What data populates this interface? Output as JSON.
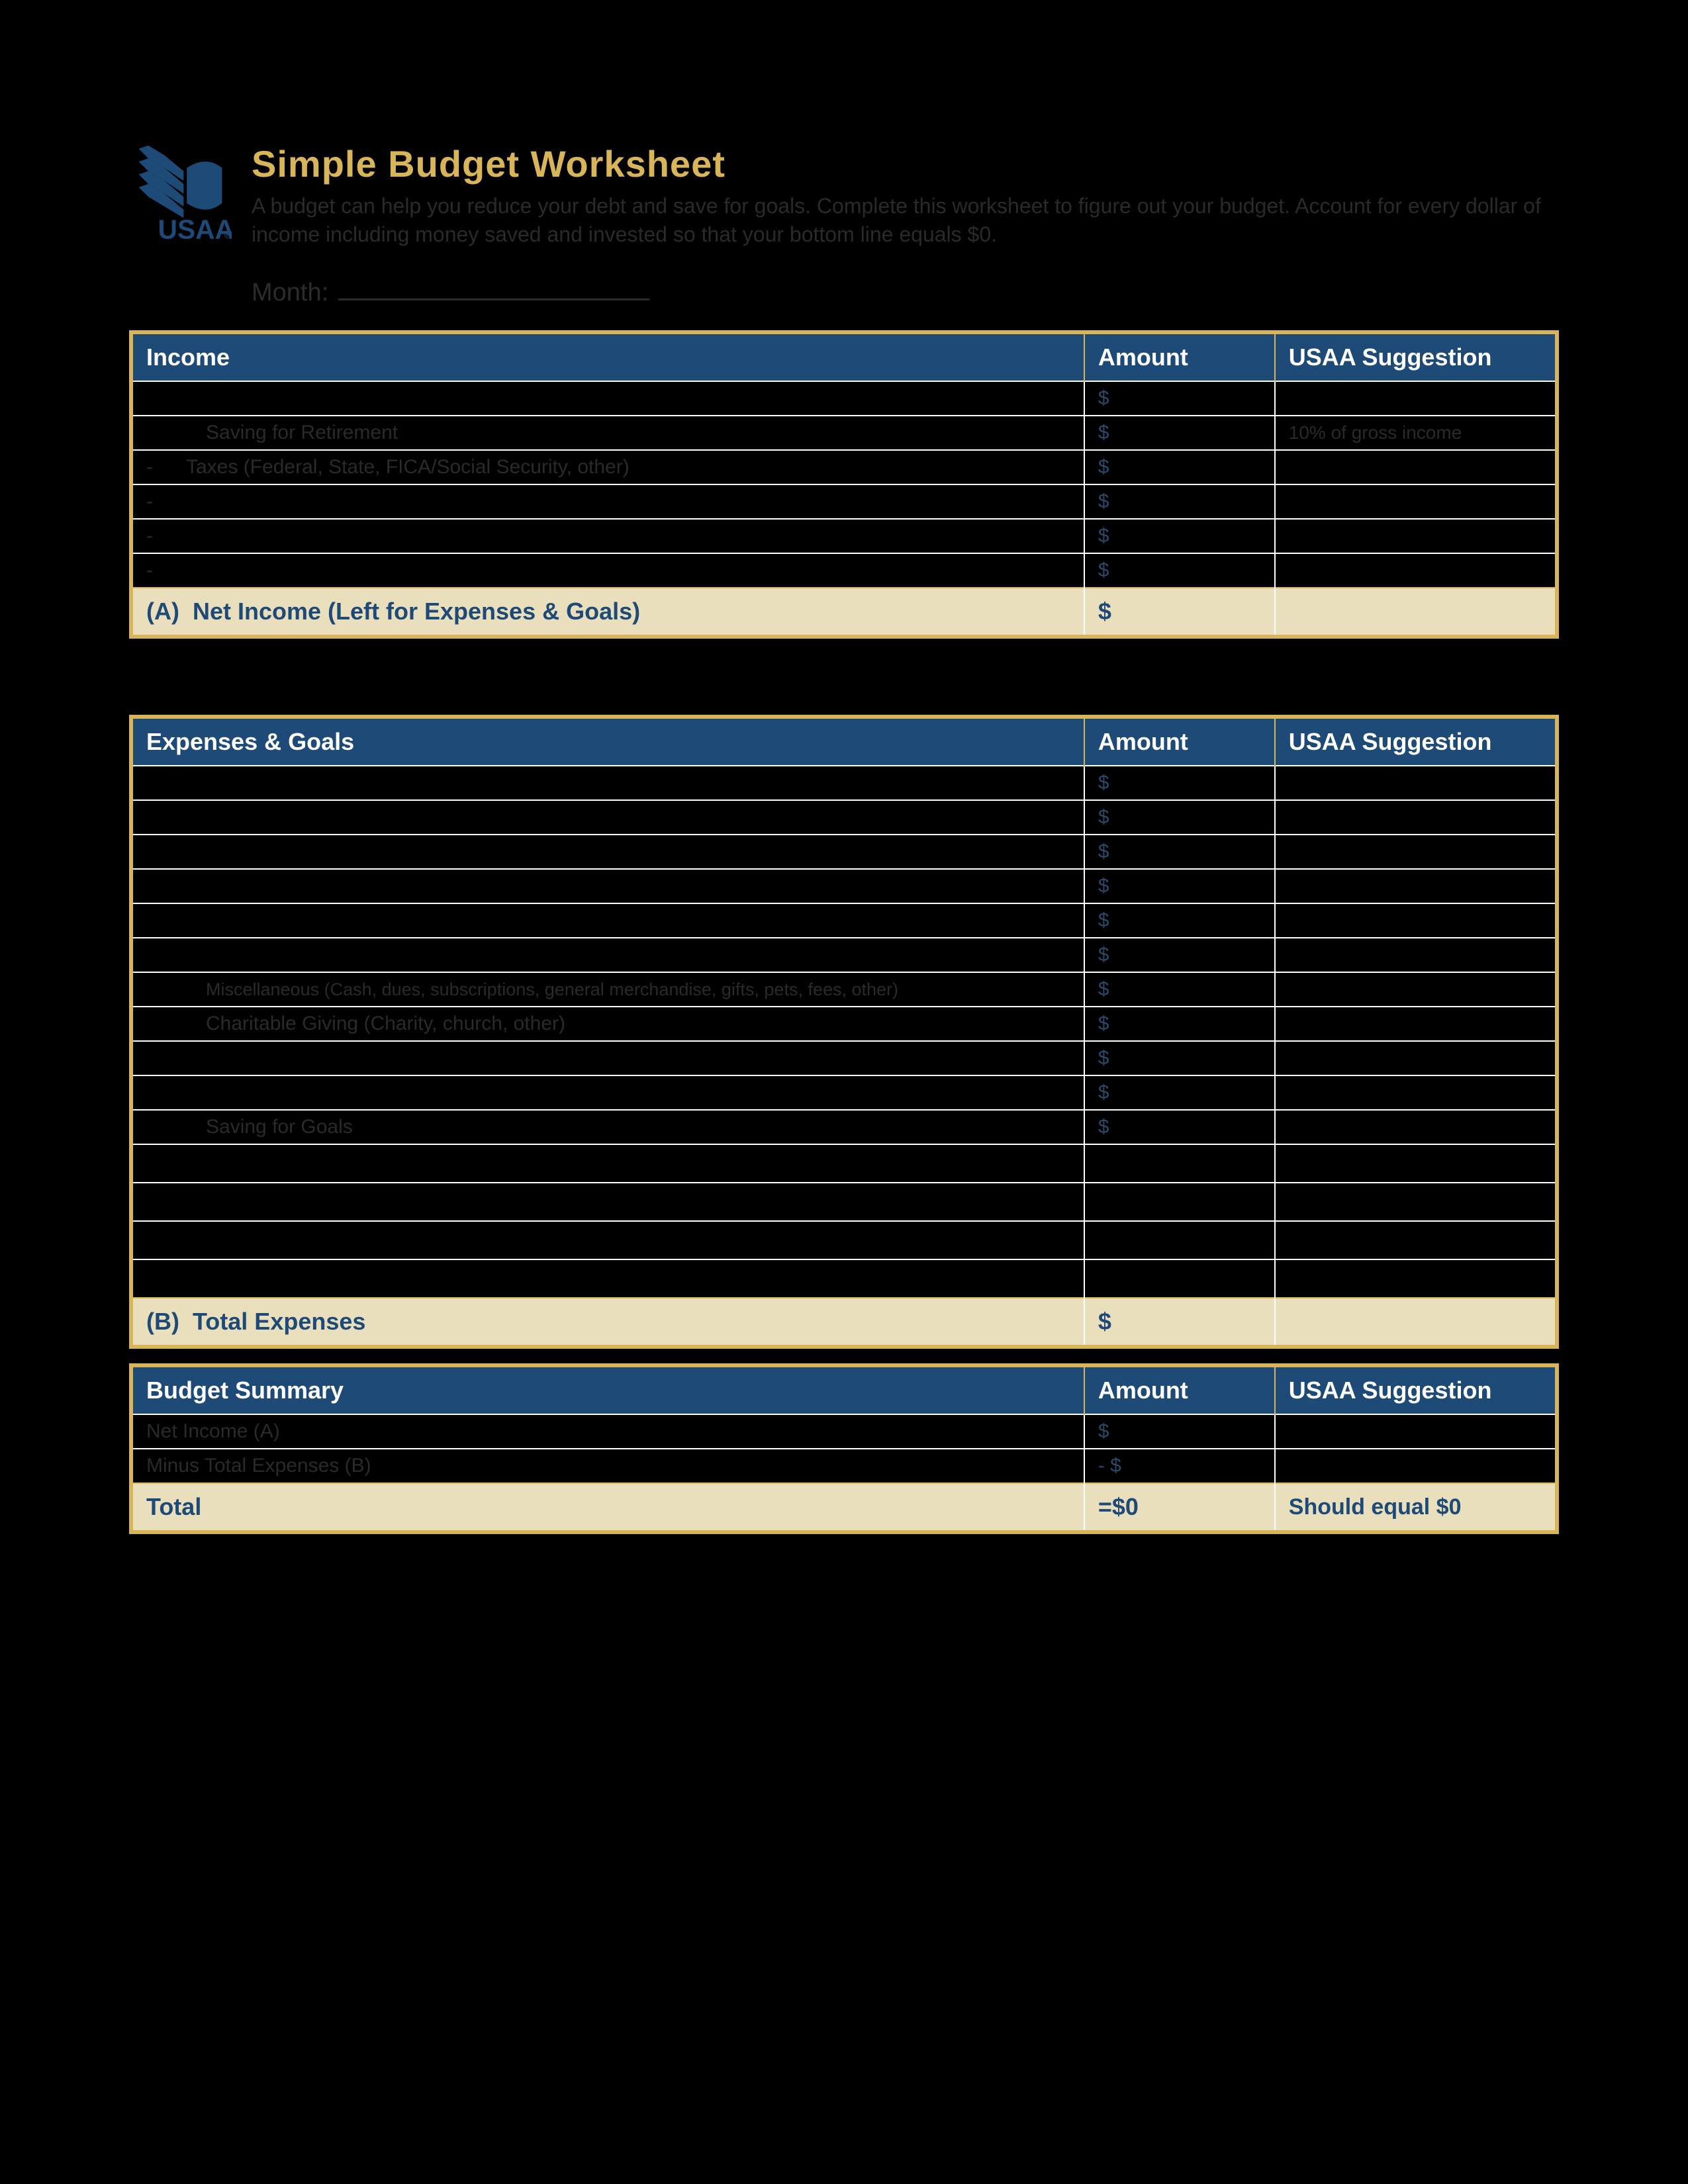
{
  "header": {
    "logo_text": "USAA",
    "title": "Simple Budget Worksheet",
    "subtitle": "A budget can help you reduce your debt and save for goals. Complete this worksheet to figure out your budget. Account for every dollar of income including money saved and invested so that your bottom line equals $0.",
    "month_label": "Month:"
  },
  "colors": {
    "page_bg": "#000000",
    "gold": "#d9b559",
    "navy": "#1e4a77",
    "tan": "#eadfbc",
    "dim_text": "#2a2a2a",
    "white": "#ffffff"
  },
  "tables": {
    "income": {
      "headers": {
        "desc": "Income",
        "amount": "Amount",
        "sugg": "USAA Suggestion"
      },
      "rows": [
        {
          "desc": "",
          "amount": "$",
          "sugg": ""
        },
        {
          "desc": "Saving for Retirement",
          "amount": "$",
          "sugg": "10% of gross income",
          "indent": true
        },
        {
          "desc": "Taxes (Federal, State, FICA/Social Security, other)",
          "amount": "$",
          "sugg": "",
          "minus": true
        },
        {
          "desc": "",
          "amount": "$",
          "sugg": "",
          "minus": true
        },
        {
          "desc": "",
          "amount": "$",
          "sugg": "",
          "minus": true
        },
        {
          "desc": "",
          "amount": "$",
          "sugg": "",
          "minus": true
        }
      ],
      "total": {
        "desc": "(A)  Net Income (Left for Expenses & Goals)",
        "amount": "$",
        "sugg": ""
      }
    },
    "expenses": {
      "headers": {
        "desc": "Expenses & Goals",
        "amount": "Amount",
        "sugg": "USAA Suggestion"
      },
      "rows": [
        {
          "desc": "",
          "amount": "$",
          "sugg": ""
        },
        {
          "desc": "",
          "amount": "$",
          "sugg": ""
        },
        {
          "desc": "",
          "amount": "$",
          "sugg": ""
        },
        {
          "desc": "",
          "amount": "$",
          "sugg": ""
        },
        {
          "desc": "",
          "amount": "$",
          "sugg": ""
        },
        {
          "desc": "",
          "amount": "$",
          "sugg": ""
        },
        {
          "desc": "Miscellaneous (Cash, dues, subscriptions, general merchandise, gifts, pets, fees, other)",
          "amount": "$",
          "sugg": "",
          "indent": true,
          "small": true
        },
        {
          "desc": "Charitable Giving (Charity, church, other)",
          "amount": "$",
          "sugg": "",
          "indent": true
        },
        {
          "desc": "",
          "amount": "$",
          "sugg": ""
        },
        {
          "desc": "",
          "amount": "$",
          "sugg": ""
        },
        {
          "desc": "Saving for Goals",
          "amount": "$",
          "sugg": "",
          "indent": true
        },
        {
          "desc": "",
          "amount": "",
          "sugg": "",
          "tall": true
        },
        {
          "desc": "",
          "amount": "",
          "sugg": "",
          "tall": true
        },
        {
          "desc": "",
          "amount": "",
          "sugg": "",
          "tall": true
        },
        {
          "desc": "",
          "amount": "",
          "sugg": "",
          "tall": true
        }
      ],
      "total": {
        "desc": "(B)  Total Expenses",
        "amount": "$",
        "sugg": ""
      }
    },
    "summary": {
      "headers": {
        "desc": "Budget Summary",
        "amount": "Amount",
        "sugg": "USAA Suggestion"
      },
      "rows": [
        {
          "desc": "Net Income (A)",
          "amount": "$",
          "sugg": ""
        },
        {
          "desc": "Minus Total Expenses (B)",
          "amount": "- $",
          "sugg": ""
        }
      ],
      "total": {
        "desc": "Total",
        "amount": "=$0",
        "sugg": "Should equal $0"
      }
    }
  }
}
